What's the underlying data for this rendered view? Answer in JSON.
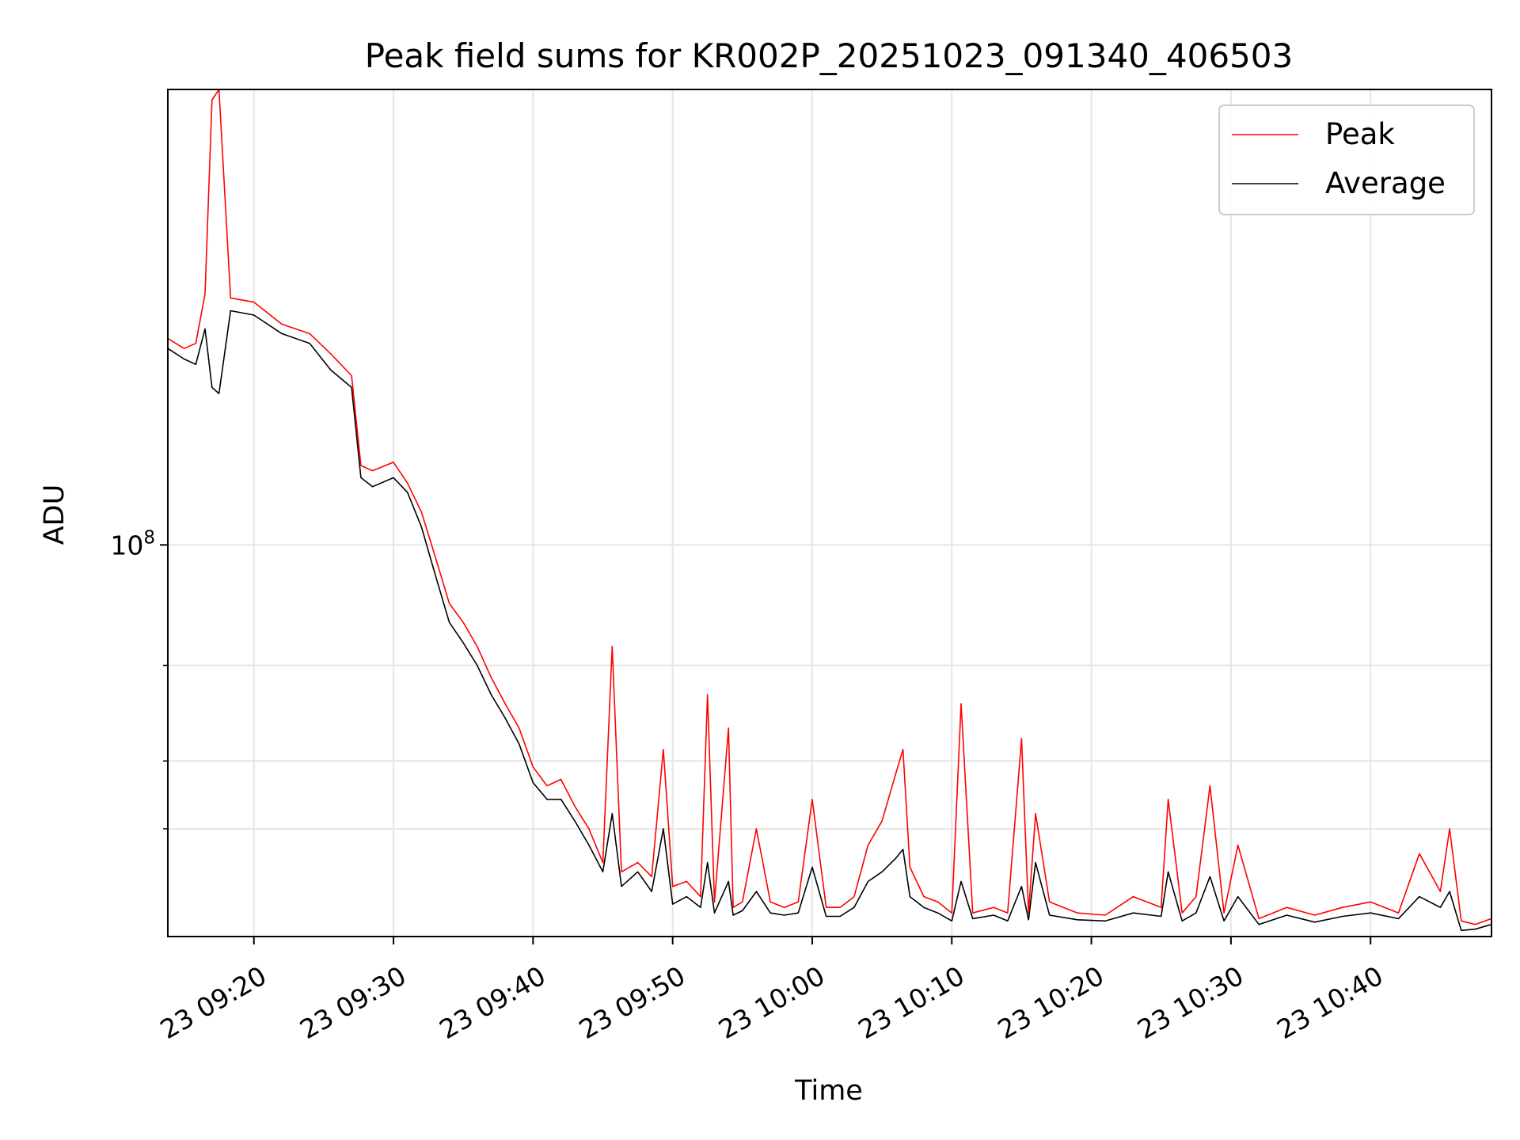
{
  "chart_data": {
    "type": "line",
    "title": "Peak field sums for KR002P_20251023_091340_406503",
    "xlabel": "Time",
    "ylabel": "ADU",
    "y_scale": "log",
    "ylim": [
      19000000,
      690000000
    ],
    "xlim": [
      "2025-10-23 09:13:50",
      "2025-10-23 10:48:40"
    ],
    "grid": true,
    "legend_position": "top-right",
    "x_ticks": [
      {
        "at": "2025-10-23 09:20",
        "label": "23 09:20"
      },
      {
        "at": "2025-10-23 09:30",
        "label": "23 09:30"
      },
      {
        "at": "2025-10-23 09:40",
        "label": "23 09:40"
      },
      {
        "at": "2025-10-23 09:50",
        "label": "23 09:50"
      },
      {
        "at": "2025-10-23 10:00",
        "label": "23 10:00"
      },
      {
        "at": "2025-10-23 10:10",
        "label": "23 10:10"
      },
      {
        "at": "2025-10-23 10:20",
        "label": "23 10:20"
      },
      {
        "at": "2025-10-23 10:30",
        "label": "23 10:30"
      },
      {
        "at": "2025-10-23 10:40",
        "label": "23 10:40"
      }
    ],
    "y_ticks_major": [
      {
        "value": 100000000,
        "label": "10^8",
        "base": "10",
        "exponent": "8"
      }
    ],
    "y_ticks_minor": [
      30000000,
      40000000,
      60000000
    ],
    "series": [
      {
        "name": "Peak",
        "color": "#ff0000",
        "x": [
          "2025-10-23 09:13:50",
          "2025-10-23 09:15:00",
          "2025-10-23 09:15:50",
          "2025-10-23 09:16:30",
          "2025-10-23 09:17:00",
          "2025-10-23 09:17:30",
          "2025-10-23 09:18:20",
          "2025-10-23 09:20:00",
          "2025-10-23 09:22:00",
          "2025-10-23 09:24:00",
          "2025-10-23 09:25:30",
          "2025-10-23 09:27:00",
          "2025-10-23 09:27:40",
          "2025-10-23 09:28:30",
          "2025-10-23 09:30:00",
          "2025-10-23 09:31:00",
          "2025-10-23 09:32:00",
          "2025-10-23 09:33:00",
          "2025-10-23 09:34:00",
          "2025-10-23 09:35:00",
          "2025-10-23 09:36:00",
          "2025-10-23 09:37:00",
          "2025-10-23 09:38:00",
          "2025-10-23 09:39:00",
          "2025-10-23 09:40:00",
          "2025-10-23 09:41:00",
          "2025-10-23 09:42:00",
          "2025-10-23 09:43:00",
          "2025-10-23 09:44:00",
          "2025-10-23 09:45:00",
          "2025-10-23 09:45:40",
          "2025-10-23 09:46:20",
          "2025-10-23 09:47:30",
          "2025-10-23 09:48:30",
          "2025-10-23 09:49:20",
          "2025-10-23 09:50:00",
          "2025-10-23 09:51:00",
          "2025-10-23 09:52:00",
          "2025-10-23 09:52:30",
          "2025-10-23 09:53:00",
          "2025-10-23 09:54:00",
          "2025-10-23 09:54:20",
          "2025-10-23 09:55:00",
          "2025-10-23 09:56:00",
          "2025-10-23 09:57:00",
          "2025-10-23 09:58:00",
          "2025-10-23 09:59:00",
          "2025-10-23 10:00:00",
          "2025-10-23 10:01:00",
          "2025-10-23 10:02:00",
          "2025-10-23 10:03:00",
          "2025-10-23 10:04:00",
          "2025-10-23 10:05:00",
          "2025-10-23 10:06:00",
          "2025-10-23 10:06:30",
          "2025-10-23 10:07:00",
          "2025-10-23 10:08:00",
          "2025-10-23 10:09:00",
          "2025-10-23 10:10:00",
          "2025-10-23 10:10:40",
          "2025-10-23 10:11:30",
          "2025-10-23 10:13:00",
          "2025-10-23 10:14:00",
          "2025-10-23 10:15:00",
          "2025-10-23 10:15:30",
          "2025-10-23 10:16:00",
          "2025-10-23 10:17:00",
          "2025-10-23 10:19:00",
          "2025-10-23 10:21:00",
          "2025-10-23 10:23:00",
          "2025-10-23 10:25:00",
          "2025-10-23 10:25:30",
          "2025-10-23 10:26:30",
          "2025-10-23 10:27:30",
          "2025-10-23 10:28:30",
          "2025-10-23 10:29:30",
          "2025-10-23 10:30:30",
          "2025-10-23 10:32:00",
          "2025-10-23 10:34:00",
          "2025-10-23 10:36:00",
          "2025-10-23 10:38:00",
          "2025-10-23 10:40:00",
          "2025-10-23 10:42:00",
          "2025-10-23 10:43:30",
          "2025-10-23 10:45:00",
          "2025-10-23 10:45:40",
          "2025-10-23 10:46:30",
          "2025-10-23 10:47:30",
          "2025-10-23 10:48:40"
        ],
        "y": [
          240000000,
          230000000,
          235000000,
          290000000,
          660000000,
          690000000,
          285000000,
          280000000,
          255000000,
          245000000,
          225000000,
          205000000,
          140000000,
          137000000,
          142000000,
          130000000,
          115000000,
          95000000,
          78000000,
          72000000,
          65000000,
          57000000,
          51000000,
          46000000,
          39000000,
          36000000,
          37000000,
          33000000,
          30000000,
          26000000,
          65000000,
          25000000,
          26000000,
          24500000,
          42000000,
          23500000,
          24000000,
          22500000,
          53000000,
          22000000,
          46000000,
          21500000,
          22000000,
          30000000,
          22000000,
          21500000,
          22000000,
          34000000,
          21500000,
          21500000,
          22500000,
          28000000,
          31000000,
          38000000,
          42000000,
          25500000,
          22500000,
          22000000,
          21000000,
          51000000,
          21000000,
          21500000,
          21000000,
          44000000,
          21000000,
          32000000,
          22000000,
          21000000,
          20800000,
          22500000,
          21500000,
          34000000,
          21000000,
          22500000,
          36000000,
          21000000,
          28000000,
          20500000,
          21500000,
          20800000,
          21500000,
          22000000,
          21000000,
          27000000,
          23000000,
          30000000,
          20300000,
          20000000,
          20500000
        ],
        "series_role": "upper"
      },
      {
        "name": "Average",
        "color": "#000000",
        "x": [
          "2025-10-23 09:13:50",
          "2025-10-23 09:15:00",
          "2025-10-23 09:15:50",
          "2025-10-23 09:16:30",
          "2025-10-23 09:17:00",
          "2025-10-23 09:17:30",
          "2025-10-23 09:18:20",
          "2025-10-23 09:20:00",
          "2025-10-23 09:22:00",
          "2025-10-23 09:24:00",
          "2025-10-23 09:25:30",
          "2025-10-23 09:27:00",
          "2025-10-23 09:27:40",
          "2025-10-23 09:28:30",
          "2025-10-23 09:30:00",
          "2025-10-23 09:31:00",
          "2025-10-23 09:32:00",
          "2025-10-23 09:33:00",
          "2025-10-23 09:34:00",
          "2025-10-23 09:35:00",
          "2025-10-23 09:36:00",
          "2025-10-23 09:37:00",
          "2025-10-23 09:38:00",
          "2025-10-23 09:39:00",
          "2025-10-23 09:40:00",
          "2025-10-23 09:41:00",
          "2025-10-23 09:42:00",
          "2025-10-23 09:43:00",
          "2025-10-23 09:44:00",
          "2025-10-23 09:45:00",
          "2025-10-23 09:45:40",
          "2025-10-23 09:46:20",
          "2025-10-23 09:47:30",
          "2025-10-23 09:48:30",
          "2025-10-23 09:49:20",
          "2025-10-23 09:50:00",
          "2025-10-23 09:51:00",
          "2025-10-23 09:52:00",
          "2025-10-23 09:52:30",
          "2025-10-23 09:53:00",
          "2025-10-23 09:54:00",
          "2025-10-23 09:54:20",
          "2025-10-23 09:55:00",
          "2025-10-23 09:56:00",
          "2025-10-23 09:57:00",
          "2025-10-23 09:58:00",
          "2025-10-23 09:59:00",
          "2025-10-23 10:00:00",
          "2025-10-23 10:01:00",
          "2025-10-23 10:02:00",
          "2025-10-23 10:03:00",
          "2025-10-23 10:04:00",
          "2025-10-23 10:05:00",
          "2025-10-23 10:06:00",
          "2025-10-23 10:06:30",
          "2025-10-23 10:07:00",
          "2025-10-23 10:08:00",
          "2025-10-23 10:09:00",
          "2025-10-23 10:10:00",
          "2025-10-23 10:10:40",
          "2025-10-23 10:11:30",
          "2025-10-23 10:13:00",
          "2025-10-23 10:14:00",
          "2025-10-23 10:15:00",
          "2025-10-23 10:15:30",
          "2025-10-23 10:16:00",
          "2025-10-23 10:17:00",
          "2025-10-23 10:19:00",
          "2025-10-23 10:21:00",
          "2025-10-23 10:23:00",
          "2025-10-23 10:25:00",
          "2025-10-23 10:25:30",
          "2025-10-23 10:26:30",
          "2025-10-23 10:27:30",
          "2025-10-23 10:28:30",
          "2025-10-23 10:29:30",
          "2025-10-23 10:30:30",
          "2025-10-23 10:32:00",
          "2025-10-23 10:34:00",
          "2025-10-23 10:36:00",
          "2025-10-23 10:38:00",
          "2025-10-23 10:40:00",
          "2025-10-23 10:42:00",
          "2025-10-23 10:43:30",
          "2025-10-23 10:45:00",
          "2025-10-23 10:45:40",
          "2025-10-23 10:46:30",
          "2025-10-23 10:47:30",
          "2025-10-23 10:48:40"
        ],
        "y": [
          230000000,
          220000000,
          215000000,
          250000000,
          195000000,
          190000000,
          270000000,
          265000000,
          245000000,
          235000000,
          210000000,
          195000000,
          133000000,
          128000000,
          133000000,
          125000000,
          108000000,
          88000000,
          72000000,
          66000000,
          60000000,
          53000000,
          48000000,
          43000000,
          36500000,
          34000000,
          34000000,
          31000000,
          28000000,
          25000000,
          32000000,
          23500000,
          25000000,
          23000000,
          30000000,
          21800000,
          22500000,
          21500000,
          26000000,
          21000000,
          24000000,
          20800000,
          21200000,
          23000000,
          21000000,
          20800000,
          21000000,
          25500000,
          20700000,
          20700000,
          21500000,
          24000000,
          25000000,
          26500000,
          27500000,
          22500000,
          21500000,
          21000000,
          20300000,
          24000000,
          20500000,
          20800000,
          20300000,
          23500000,
          20400000,
          26000000,
          20800000,
          20400000,
          20300000,
          21000000,
          20700000,
          25000000,
          20300000,
          21000000,
          24500000,
          20300000,
          22500000,
          20000000,
          20800000,
          20200000,
          20700000,
          21000000,
          20500000,
          22500000,
          21500000,
          23000000,
          19500000,
          19600000,
          20000000
        ],
        "series_role": "lower"
      }
    ]
  }
}
